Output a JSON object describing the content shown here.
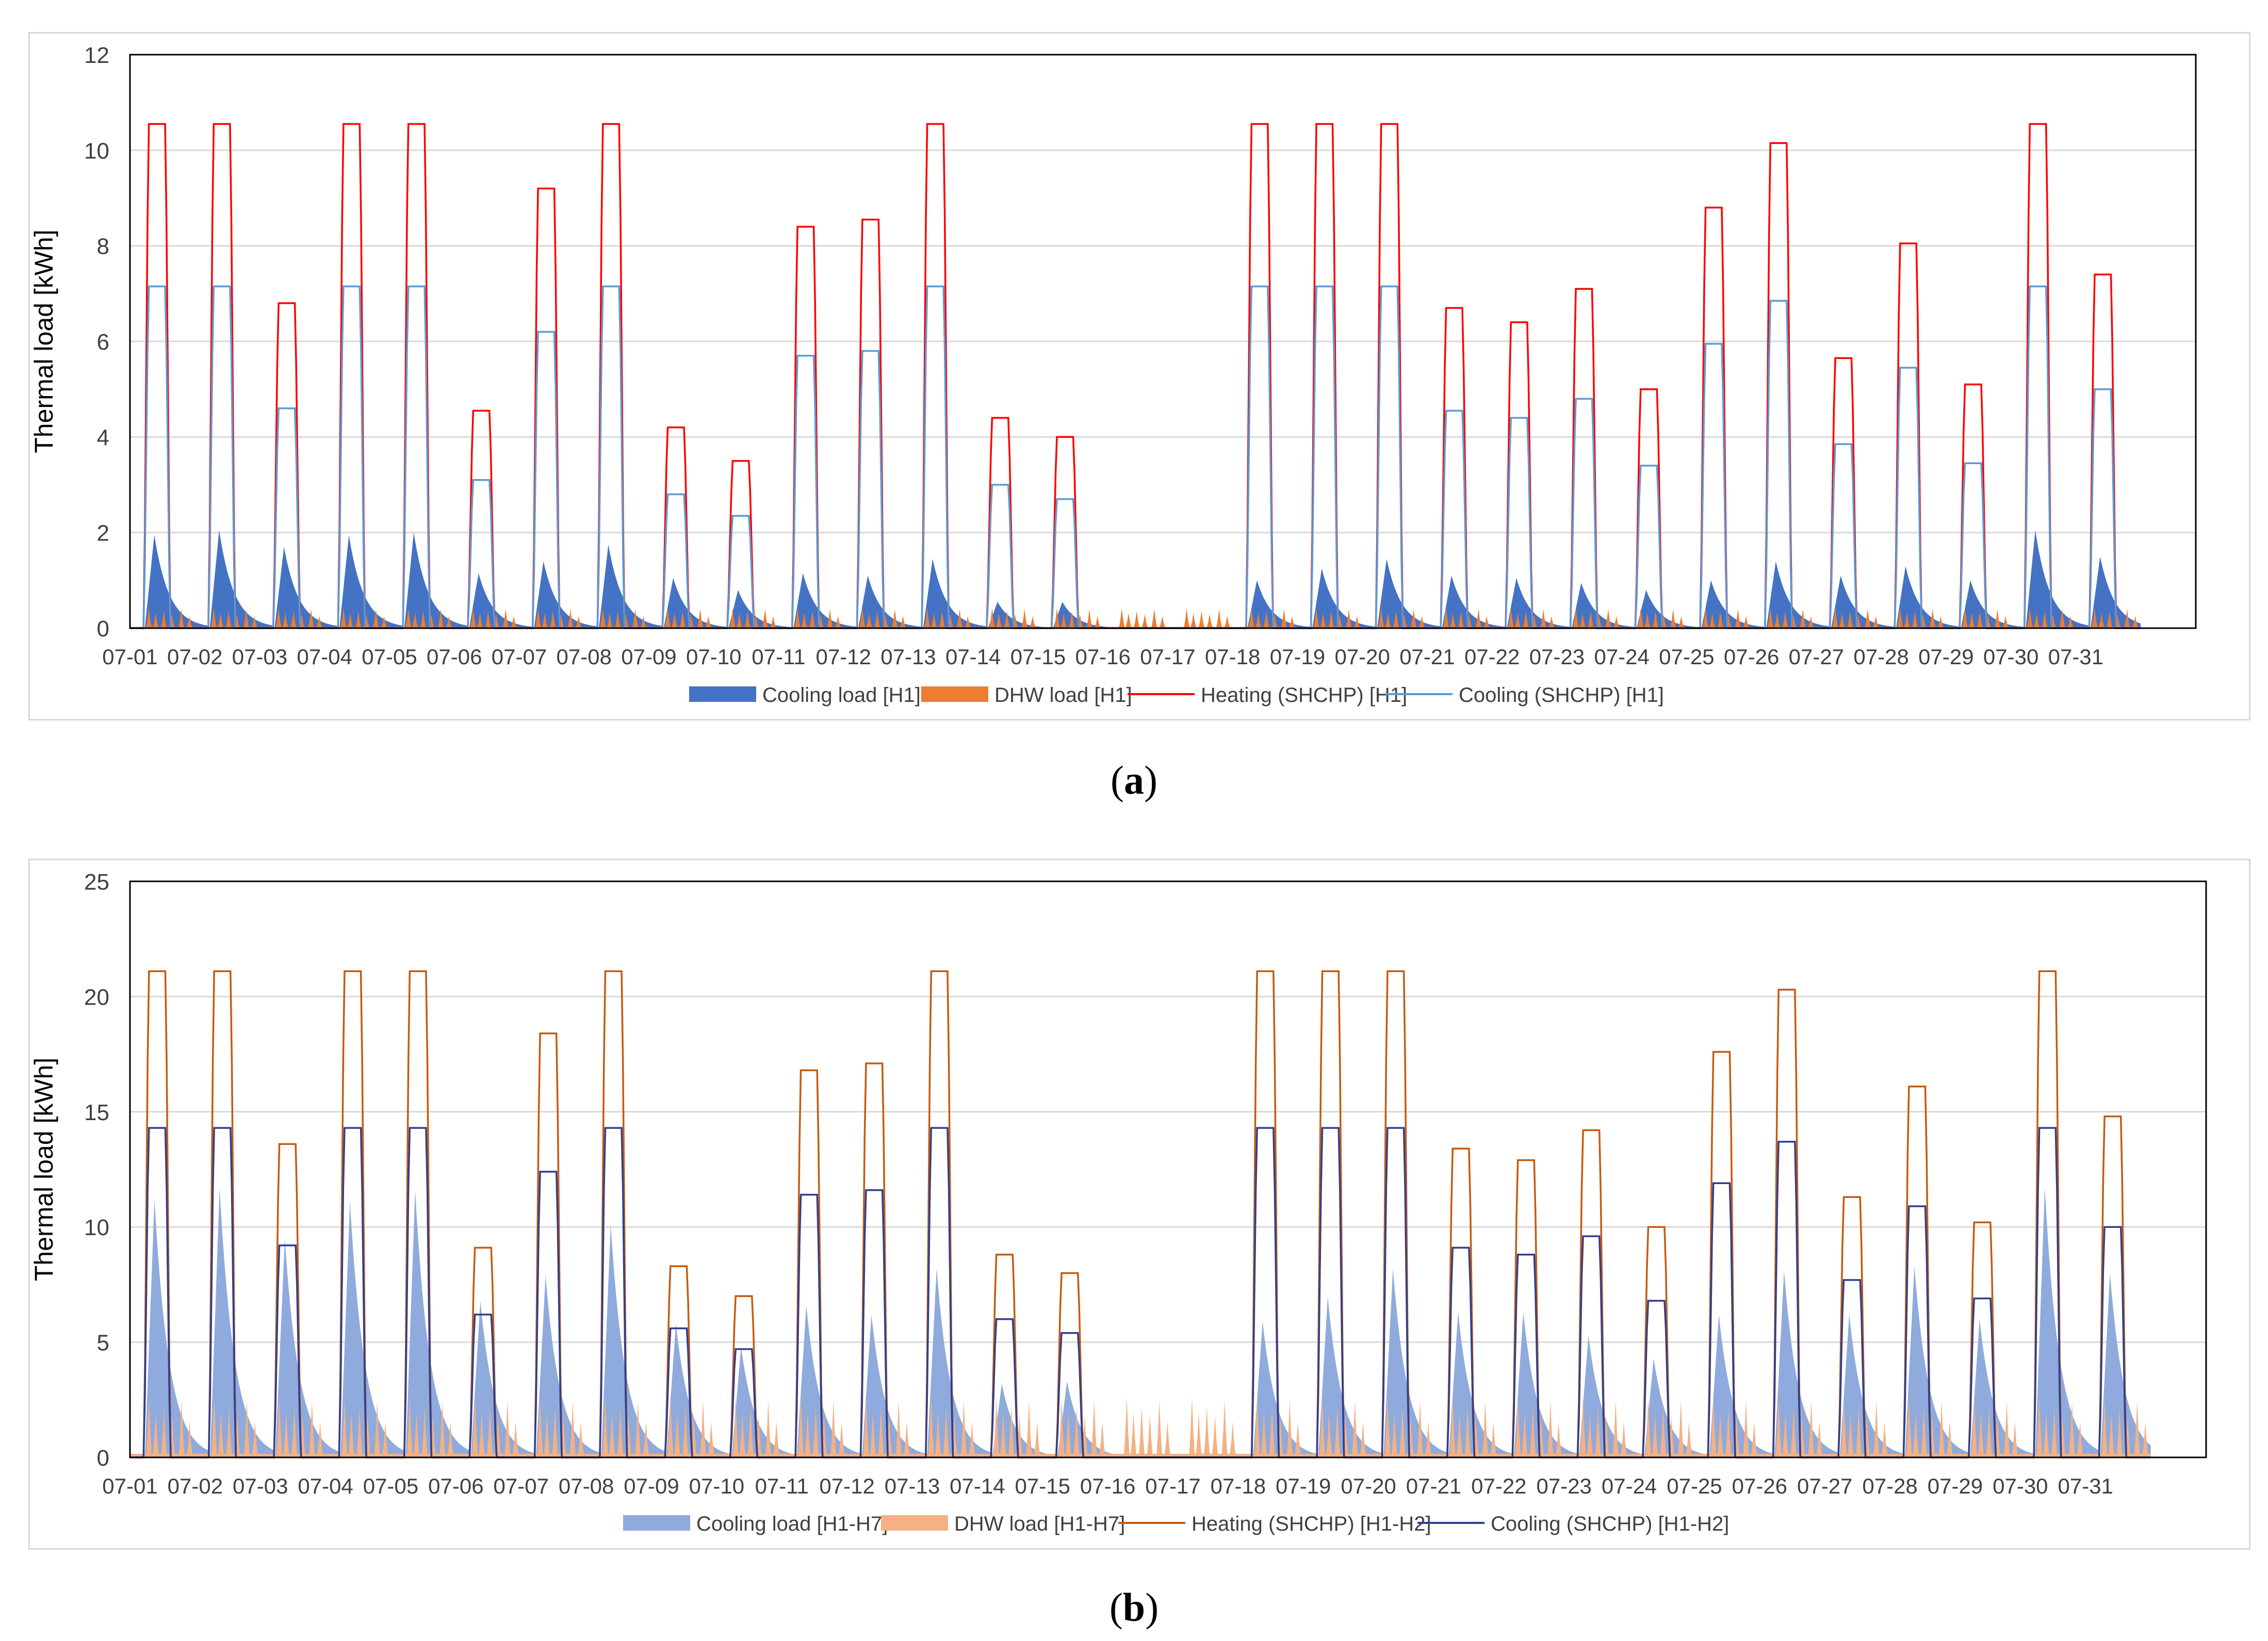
{
  "chart_data": [
    {
      "id": "a",
      "type": "area+line",
      "caption_letter": "a",
      "ylabel": "Thermal load [kWh]",
      "xlabel": "",
      "ylim": [
        0,
        12
      ],
      "yticks": [
        0,
        2,
        4,
        6,
        8,
        10,
        12
      ],
      "grid": true,
      "categories": [
        "07-01",
        "07-02",
        "07-03",
        "07-04",
        "07-05",
        "07-06",
        "07-07",
        "07-08",
        "07-09",
        "07-10",
        "07-11",
        "07-12",
        "07-13",
        "07-14",
        "07-15",
        "07-16",
        "07-17",
        "07-18",
        "07-19",
        "07-20",
        "07-21",
        "07-22",
        "07-23",
        "07-24",
        "07-25",
        "07-26",
        "07-27",
        "07-28",
        "07-29",
        "07-30",
        "07-31"
      ],
      "legend_position": "bottom",
      "series": [
        {
          "name": "Cooling load [H1]",
          "kind": "area",
          "color": "#4472c4",
          "daily_peak": [
            1.95,
            2.05,
            1.7,
            1.95,
            2.0,
            1.15,
            1.4,
            1.75,
            1.05,
            0.8,
            1.15,
            1.1,
            1.45,
            0.55,
            0.55,
            0,
            0,
            1.0,
            1.25,
            1.45,
            1.1,
            1.05,
            0.95,
            0.8,
            1.0,
            1.4,
            1.1,
            1.3,
            1.0,
            2.05,
            1.5
          ]
        },
        {
          "name": "DHW load [H1]",
          "kind": "area",
          "color": "#ed7d31",
          "daily_peak": [
            0.42,
            0.42,
            0.42,
            0.42,
            0.42,
            0.42,
            0.42,
            0.42,
            0.42,
            0.42,
            0.42,
            0.42,
            0.42,
            0.42,
            0.42,
            0.42,
            0.42,
            0.42,
            0.42,
            0.42,
            0.42,
            0.42,
            0.42,
            0.42,
            0.42,
            0.42,
            0.42,
            0.42,
            0.42,
            0.42,
            0.42
          ]
        },
        {
          "name": "Heating (SHCHP) [H1]",
          "kind": "line",
          "color": "#ff0000",
          "daily_peak": [
            10.55,
            10.55,
            6.8,
            10.55,
            10.55,
            4.55,
            9.2,
            10.55,
            4.2,
            3.5,
            8.4,
            8.55,
            10.55,
            4.4,
            4.0,
            0,
            0,
            10.55,
            10.55,
            10.55,
            6.7,
            6.4,
            7.1,
            5.0,
            8.8,
            10.15,
            5.65,
            8.05,
            5.1,
            10.55,
            7.4
          ]
        },
        {
          "name": "Cooling (SHCHP) [H1]",
          "kind": "line",
          "color": "#5b9bd5",
          "daily_peak": [
            7.15,
            7.15,
            4.6,
            7.15,
            7.15,
            3.1,
            6.2,
            7.15,
            2.8,
            2.35,
            5.7,
            5.8,
            7.15,
            3.0,
            2.7,
            0,
            0,
            7.15,
            7.15,
            7.15,
            4.55,
            4.4,
            4.8,
            3.4,
            5.95,
            6.85,
            3.85,
            5.45,
            3.45,
            7.15,
            5.0
          ]
        }
      ]
    },
    {
      "id": "b",
      "type": "area+line",
      "caption_letter": "b",
      "ylabel": "Thermal load [kWh]",
      "xlabel": "",
      "ylim": [
        0,
        25
      ],
      "yticks": [
        0,
        5,
        10,
        15,
        20,
        25
      ],
      "grid": true,
      "categories": [
        "07-01",
        "07-02",
        "07-03",
        "07-04",
        "07-05",
        "07-06",
        "07-07",
        "07-08",
        "07-09",
        "07-10",
        "07-11",
        "07-12",
        "07-13",
        "07-14",
        "07-15",
        "07-16",
        "07-17",
        "07-18",
        "07-19",
        "07-20",
        "07-21",
        "07-22",
        "07-23",
        "07-24",
        "07-25",
        "07-26",
        "07-27",
        "07-28",
        "07-29",
        "07-30",
        "07-31"
      ],
      "legend_position": "bottom",
      "series": [
        {
          "name": "Cooling load [H1-H7]",
          "kind": "area",
          "color": "#8faadc",
          "daily_peak": [
            11.2,
            11.7,
            9.5,
            11.1,
            11.6,
            6.8,
            7.9,
            10.1,
            5.8,
            4.8,
            6.6,
            6.2,
            8.2,
            3.2,
            3.3,
            0,
            0,
            5.9,
            7.0,
            8.2,
            6.3,
            6.3,
            5.3,
            4.3,
            6.2,
            8.1,
            6.2,
            8.3,
            6.0,
            11.7,
            8.0
          ]
        },
        {
          "name": "DHW load [H1-H7]",
          "kind": "area",
          "color": "#f4b183",
          "daily_peak": [
            2.6,
            2.6,
            2.6,
            2.6,
            2.6,
            2.6,
            2.6,
            2.6,
            2.6,
            2.6,
            2.6,
            2.6,
            2.6,
            2.6,
            2.6,
            2.6,
            2.6,
            2.6,
            2.6,
            2.6,
            2.6,
            2.6,
            2.6,
            2.6,
            2.6,
            2.6,
            2.6,
            2.6,
            2.6,
            2.6,
            2.6
          ]
        },
        {
          "name": "Heating (SHCHP) [H1-H2]",
          "kind": "line",
          "color": "#c55a11",
          "daily_peak": [
            21.1,
            21.1,
            13.6,
            21.1,
            21.1,
            9.1,
            18.4,
            21.1,
            8.3,
            7.0,
            16.8,
            17.1,
            21.1,
            8.8,
            8.0,
            0,
            0,
            21.1,
            21.1,
            21.1,
            13.4,
            12.9,
            14.2,
            10.0,
            17.6,
            20.3,
            11.3,
            16.1,
            10.2,
            21.1,
            14.8
          ]
        },
        {
          "name": "Cooling (SHCHP) [H1-H2]",
          "kind": "line",
          "color": "#2f3f8f",
          "daily_peak": [
            14.3,
            14.3,
            9.2,
            14.3,
            14.3,
            6.2,
            12.4,
            14.3,
            5.6,
            4.7,
            11.4,
            11.6,
            14.3,
            6.0,
            5.4,
            0,
            0,
            14.3,
            14.3,
            14.3,
            9.1,
            8.8,
            9.6,
            6.8,
            11.9,
            13.7,
            7.7,
            10.9,
            6.9,
            14.3,
            10.0
          ]
        }
      ]
    }
  ]
}
